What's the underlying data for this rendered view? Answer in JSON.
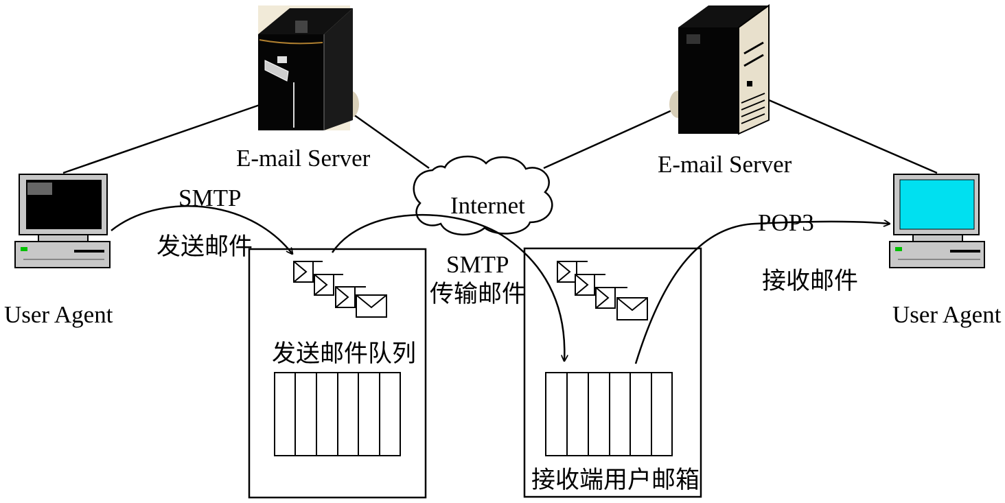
{
  "servers": {
    "left_label": "E-mail Server",
    "right_label": "E-mail Server"
  },
  "network": {
    "label": "Internet"
  },
  "clients": {
    "left_label": "User Agent",
    "right_label": "User Agent"
  },
  "flows": {
    "send_protocol": "SMTP",
    "send_action": "发送邮件",
    "transfer_protocol": "SMTP",
    "transfer_action": "传输邮件",
    "receive_protocol": "POP3",
    "receive_action": "接收邮件"
  },
  "queues": {
    "send_queue_label": "发送邮件队列",
    "mailbox_label": "接收端用户邮箱"
  },
  "colors": {
    "line": "#000000",
    "screen_right": "#00e0f0",
    "screen_left": "#000000",
    "case": "#c8c8c8",
    "server_beige": "#e8e0cc"
  }
}
